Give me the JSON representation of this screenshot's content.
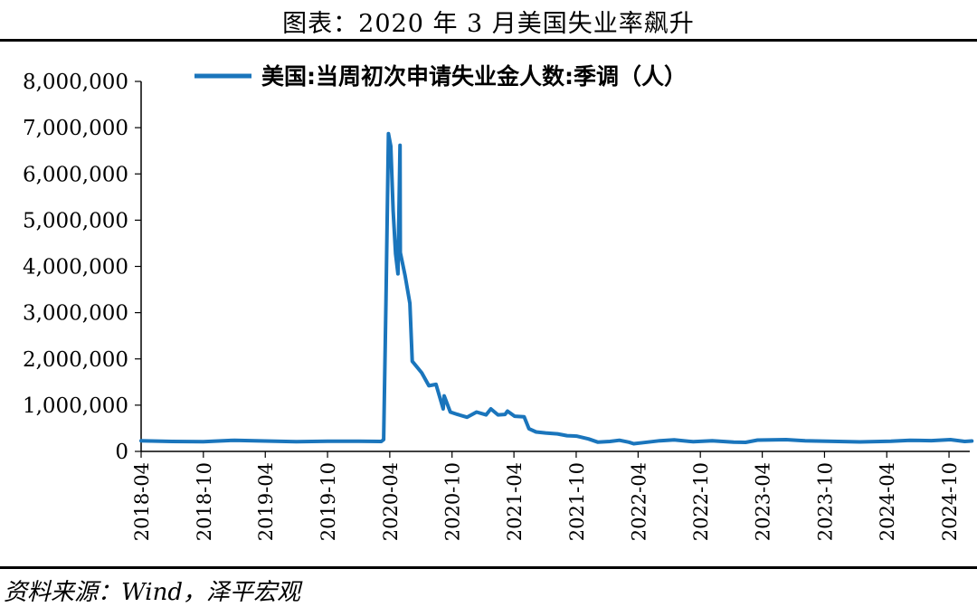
{
  "title": "图表：2020 年 3 月美国失业率飙升",
  "source": "资料来源：Wind，泽平宏观",
  "colors": {
    "series": "#1a75bc",
    "axis": "#000000"
  },
  "chart_data": {
    "type": "line",
    "title": "图表：2020 年 3 月美国失业率飙升",
    "xlabel": "",
    "ylabel": "",
    "ylim": [
      0,
      8000000
    ],
    "yticks": [
      0,
      1000000,
      2000000,
      3000000,
      4000000,
      5000000,
      6000000,
      7000000,
      8000000
    ],
    "ytick_labels": [
      "0",
      "1,000,000",
      "2,000,000",
      "3,000,000",
      "4,000,000",
      "5,000,000",
      "6,000,000",
      "7,000,000",
      "8,000,000"
    ],
    "xlim": [
      "2018-04",
      "2024-12"
    ],
    "xtick_labels": [
      "2018-04",
      "2018-10",
      "2019-04",
      "2019-10",
      "2020-04",
      "2020-10",
      "2021-04",
      "2021-10",
      "2022-04",
      "2022-10",
      "2023-04",
      "2023-10",
      "2024-04",
      "2024-10"
    ],
    "grid": false,
    "legend": "top",
    "series": [
      {
        "name": "美国:当周初次申请失业金人数:季调（人）",
        "points": [
          [
            "2018-04-01",
            230000
          ],
          [
            "2018-07-01",
            215000
          ],
          [
            "2018-10-01",
            212000
          ],
          [
            "2019-01-01",
            240000
          ],
          [
            "2019-04-01",
            225000
          ],
          [
            "2019-07-01",
            212000
          ],
          [
            "2019-10-01",
            222000
          ],
          [
            "2020-01-01",
            220000
          ],
          [
            "2020-03-07",
            215000
          ],
          [
            "2020-03-14",
            256000
          ],
          [
            "2020-03-21",
            3300000
          ],
          [
            "2020-03-28",
            6870000
          ],
          [
            "2020-04-04",
            6600000
          ],
          [
            "2020-04-11",
            5200000
          ],
          [
            "2020-04-18",
            4270000
          ],
          [
            "2020-04-25",
            3840000
          ],
          [
            "2020-05-01",
            6620000
          ],
          [
            "2020-05-02",
            4300000
          ],
          [
            "2020-05-16",
            3800000
          ],
          [
            "2020-05-30",
            3200000
          ],
          [
            "2020-06-06",
            1950000
          ],
          [
            "2020-07-04",
            1700000
          ],
          [
            "2020-07-25",
            1420000
          ],
          [
            "2020-08-15",
            1450000
          ],
          [
            "2020-09-05",
            920000
          ],
          [
            "2020-09-08",
            1200000
          ],
          [
            "2020-09-26",
            850000
          ],
          [
            "2020-10-17",
            800000
          ],
          [
            "2020-11-14",
            740000
          ],
          [
            "2020-12-12",
            850000
          ],
          [
            "2021-01-09",
            790000
          ],
          [
            "2021-01-23",
            920000
          ],
          [
            "2021-02-13",
            790000
          ],
          [
            "2021-03-06",
            800000
          ],
          [
            "2021-03-13",
            870000
          ],
          [
            "2021-04-03",
            760000
          ],
          [
            "2021-05-01",
            750000
          ],
          [
            "2021-05-15",
            490000
          ],
          [
            "2021-06-05",
            420000
          ],
          [
            "2021-07-03",
            400000
          ],
          [
            "2021-08-07",
            380000
          ],
          [
            "2021-09-04",
            340000
          ],
          [
            "2021-10-02",
            330000
          ],
          [
            "2021-11-06",
            270000
          ],
          [
            "2021-12-04",
            200000
          ],
          [
            "2022-01-08",
            215000
          ],
          [
            "2022-02-05",
            240000
          ],
          [
            "2022-03-05",
            200000
          ],
          [
            "2022-03-19",
            166000
          ],
          [
            "2022-04-16",
            190000
          ],
          [
            "2022-06-04",
            230000
          ],
          [
            "2022-07-16",
            250000
          ],
          [
            "2022-09-10",
            210000
          ],
          [
            "2022-11-05",
            230000
          ],
          [
            "2023-01-07",
            200000
          ],
          [
            "2023-02-11",
            195000
          ],
          [
            "2023-03-18",
            245000
          ],
          [
            "2023-06-10",
            255000
          ],
          [
            "2023-08-05",
            230000
          ],
          [
            "2023-11-11",
            215000
          ],
          [
            "2024-01-13",
            205000
          ],
          [
            "2024-04-13",
            222000
          ],
          [
            "2024-06-08",
            240000
          ],
          [
            "2024-08-10",
            232000
          ],
          [
            "2024-10-05",
            255000
          ],
          [
            "2024-11-16",
            215000
          ],
          [
            "2024-12-07",
            225000
          ]
        ]
      }
    ]
  }
}
